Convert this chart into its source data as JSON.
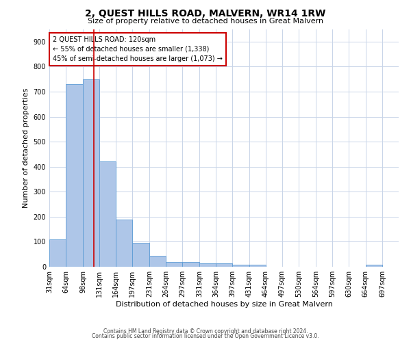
{
  "title": "2, QUEST HILLS ROAD, MALVERN, WR14 1RW",
  "subtitle": "Size of property relative to detached houses in Great Malvern",
  "xlabel": "Distribution of detached houses by size in Great Malvern",
  "ylabel": "Number of detached properties",
  "footer_line1": "Contains HM Land Registry data © Crown copyright and database right 2024.",
  "footer_line2": "Contains public sector information licensed under the Open Government Licence v3.0.",
  "bar_color": "#aec6e8",
  "bar_edge_color": "#5b9bd5",
  "grid_color": "#c8d4e8",
  "annotation_text": "2 QUEST HILLS ROAD: 120sqm\n← 55% of detached houses are smaller (1,338)\n45% of semi-detached houses are larger (1,073) →",
  "property_line_color": "#cc0000",
  "property_line_x": 120,
  "bins": [
    31,
    64,
    98,
    131,
    164,
    197,
    231,
    264,
    297,
    331,
    364,
    397,
    431,
    464,
    497,
    530,
    564,
    597,
    630,
    664,
    697
  ],
  "values": [
    110,
    730,
    750,
    420,
    190,
    95,
    45,
    20,
    20,
    15,
    15,
    8,
    8,
    0,
    0,
    0,
    0,
    0,
    0,
    8,
    0
  ],
  "ylim": [
    0,
    950
  ],
  "yticks": [
    0,
    100,
    200,
    300,
    400,
    500,
    600,
    700,
    800,
    900
  ],
  "background_color": "#ffffff",
  "title_fontsize": 10,
  "subtitle_fontsize": 8,
  "axis_label_fontsize": 8,
  "tick_fontsize": 7,
  "annotation_fontsize": 7,
  "footer_fontsize": 5.5
}
